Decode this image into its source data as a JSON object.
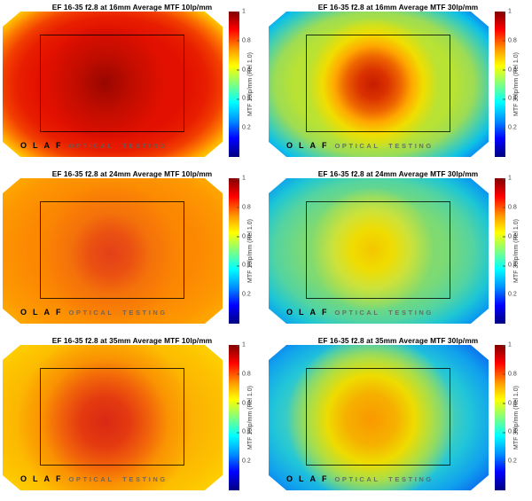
{
  "page": {
    "background": "#ffffff",
    "description": "Grid of six average MTF heatmaps for Canon EF 16-35 f2.8 lens measured by OLAF optical testing"
  },
  "watermark": {
    "brand": "OLAF",
    "text": "OPTICAL TESTING"
  },
  "colorbar": {
    "colormap": "jet",
    "range": [
      0,
      1
    ],
    "ticks": [
      {
        "label": "1",
        "position_pct": 0
      },
      {
        "label": "0.8",
        "position_pct": 20
      },
      {
        "label": "0.6",
        "position_pct": 40
      },
      {
        "label": "0.4",
        "position_pct": 60
      },
      {
        "label": "0.2",
        "position_pct": 80
      }
    ],
    "gradient": "linear-gradient(to bottom, #800000 0%, #ff0000 12.5%, #ff9900 26%, #ffff00 37.5%, #80ff80 50%, #00ffff 62.5%, #0090ff 75%, #0000ff 87.5%, #000080 100%)"
  },
  "chart_data": [
    {
      "type": "heatmap",
      "title": "EF 16-35 f2.8 at 16mm Average MTF 10lp/mm",
      "lens": "EF 16-35 f2.8",
      "focal_length": "16mm",
      "spatial_frequency": "10lp/mm",
      "colorbar_label": "MTF 10lp/mm (Rel 1.0)",
      "value_range": [
        0,
        1
      ],
      "mtf_estimate": {
        "center": 0.88,
        "mid_field": 0.85,
        "edge_mid": 0.67,
        "corner": 0.56
      },
      "render_layers": [
        "radial-gradient(circle 68px at 46.5% 49%, rgba(148,6,0,0.95) 0%, rgba(168,10,0,0.6) 45%, rgba(214,14,0,0) 100%)",
        "radial-gradient(172px 122px at 50% 50%, #e21000 0%, #e21000 48%, #e81e00 62%, #f23e00 72%, #fc7400 80%, #ffa800 86%, #ffd800 92%, #d4de06 96%, #66c840 100%)"
      ]
    },
    {
      "type": "heatmap",
      "title": "EF 16-35 f2.8 at 16mm Average MTF 30lp/mm",
      "lens": "EF 16-35 f2.8",
      "focal_length": "16mm",
      "spatial_frequency": "30lp/mm",
      "colorbar_label": "MTF 30lp/mm (Rel 1.0)",
      "value_range": [
        0,
        1
      ],
      "mtf_estimate": {
        "center": 0.84,
        "mid_field": 0.58,
        "edge_mid": 0.28,
        "corner": 0.08
      },
      "render_layers": [
        "radial-gradient(circle 75px at 47.5% 50%, #c81c00 0%, #da3200 22%, #ee6600 42%, #ffa800 58%, #f0de00 76%, rgba(184,224,52,0) 100%)",
        "radial-gradient(176px 126px at 48% 50%, #b8e234 0%, #b8e234 52%, #9cdc55 64%, #4ed0a8 74%, #0cc0e8 83%, #0c84f2 91%, #0740d0 98%, #0428b0 100%)"
      ]
    },
    {
      "type": "heatmap",
      "title": "EF 16-35 f2.8 at 24mm Average MTF 10lp/mm",
      "lens": "EF 16-35 f2.8",
      "focal_length": "24mm",
      "spatial_frequency": "10lp/mm",
      "colorbar_label": "MTF 10lp/mm (Rel 1.0)",
      "value_range": [
        0,
        1
      ],
      "mtf_estimate": {
        "center": 0.8,
        "mid_field": 0.73,
        "edge_mid": 0.7,
        "corner": 0.66
      },
      "render_layers": [
        "radial-gradient(circle 80px at 49% 52%, #e44018 0%, #ea5012 30%, #f4720a 58%, rgba(252,134,2,0) 100%)",
        "radial-gradient(172px 122px at 50% 50%, #fc8402 0%, #fc8802 55%, #fd9801 78%, #feaa00 92%, #ffb600 100%)"
      ]
    },
    {
      "type": "heatmap",
      "title": "EF 16-35 f2.8 at 24mm Average MTF 30lp/mm",
      "lens": "EF 16-35 f2.8",
      "focal_length": "24mm",
      "spatial_frequency": "30lp/mm",
      "colorbar_label": "MTF 30lp/mm (Rel 1.0)",
      "value_range": [
        0,
        1
      ],
      "mtf_estimate": {
        "center": 0.62,
        "mid_field": 0.48,
        "edge_mid": 0.3,
        "corner": 0.2
      },
      "render_layers": [
        "radial-gradient(circle 70px at 47% 49%, #f4c600 0%, #f0dc00 32%, #cce23a 62%, rgba(140,220,98,0) 100%)",
        "radial-gradient(180px 128px at 48% 50%, #8cdc62 0%, #7eda72 44%, #54d4a0 62%, #1ec6d4 75%, #0ca2ec 85%, #0c7af0 92%, #0a50d8 100%)"
      ]
    },
    {
      "type": "heatmap",
      "title": "EF 16-35 f2.8 at 35mm Average MTF 10lp/mm",
      "lens": "EF 16-35 f2.8",
      "focal_length": "35mm",
      "spatial_frequency": "10lp/mm",
      "colorbar_label": "MTF 10lp/mm (Rel 1.0)",
      "value_range": [
        0,
        1
      ],
      "mtf_estimate": {
        "center": 0.81,
        "mid_field": 0.66,
        "edge_mid": 0.63,
        "corner": 0.62
      },
      "render_layers": [
        "radial-gradient(circle 100px at 46.5% 53%, #da2814 0%, #e43a10 28%, #f2660a 52%, #fa9402 72%, rgba(252,172,2,0) 100%)",
        "radial-gradient(172px 122px at 49% 51%, #fcaa02 0%, #fcb202 55%, #fdc200 78%, #fed000 92%, #ffd800 100%)"
      ]
    },
    {
      "type": "heatmap",
      "title": "EF 16-35 f2.8 at 35mm Average MTF 30lp/mm",
      "lens": "EF 16-35 f2.8",
      "focal_length": "35mm",
      "spatial_frequency": "30lp/mm",
      "colorbar_label": "MTF 30lp/mm (Rel 1.0)",
      "value_range": [
        0,
        1
      ],
      "mtf_estimate": {
        "center": 0.68,
        "mid_field": 0.45,
        "edge_mid": 0.26,
        "corner": 0.18
      },
      "render_layers": [
        "radial-gradient(circle 95px at 46.5% 51%, #fa9800 0%, #f6b000 30%, #eedc00 52%, #aede44 72%, rgba(124,216,120,0) 100%)",
        "radial-gradient(184px 132px at 47% 50%, #7cd878 0%, #58d4a8 42%, #22c6d8 60%, #10a0ee 76%, #0c74ee 87%, #0a54dc 95%, #0844c8 100%)"
      ]
    }
  ]
}
